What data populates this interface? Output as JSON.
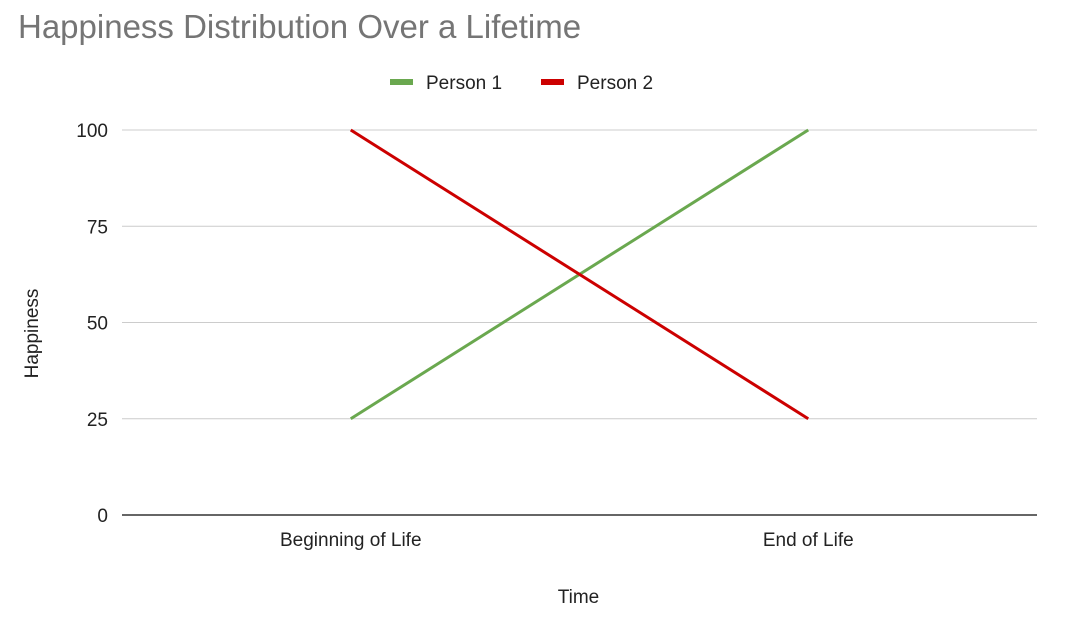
{
  "chart_data": {
    "type": "line",
    "title": "Happiness Distribution Over a Lifetime",
    "xlabel": "Time",
    "ylabel": "Happiness",
    "categories": [
      "Beginning of Life",
      "End of Life"
    ],
    "series": [
      {
        "name": "Person 1",
        "color": "#6aa84f",
        "values": [
          25,
          100
        ]
      },
      {
        "name": "Person 2",
        "color": "#cc0000",
        "values": [
          100,
          25
        ]
      }
    ],
    "ylim": [
      0,
      100
    ],
    "yticks": [
      0,
      25,
      50,
      75,
      100
    ],
    "grid": true,
    "legend_position": "top"
  }
}
